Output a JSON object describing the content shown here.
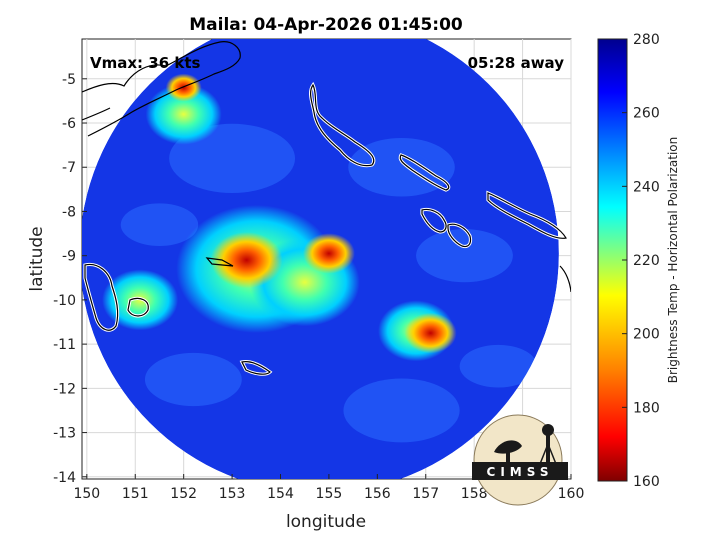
{
  "chart_data": {
    "type": "heatmap",
    "title": "Maila: 04-Apr-2026 01:45:00",
    "xlabel": "longitude",
    "ylabel": "latitude",
    "xlim": [
      149.9,
      160
    ],
    "ylim": [
      -14.05,
      -4.1
    ],
    "x_ticks": [
      150,
      151,
      152,
      153,
      154,
      155,
      156,
      157,
      158,
      159,
      160
    ],
    "y_ticks": [
      -5,
      -6,
      -7,
      -8,
      -9,
      -10,
      -11,
      -12,
      -13,
      -14
    ],
    "grid": true,
    "annotations": {
      "vmax": "Vmax: 36 kts",
      "away": "05:28 away"
    },
    "colorbar": {
      "label": "Brightness Temp - Horizontal Polarization",
      "min": 160,
      "max": 280,
      "ticks": [
        280,
        260,
        240,
        220,
        200,
        180,
        160
      ],
      "colormap": [
        "#7f0000",
        "#ff0000",
        "#ff8000",
        "#ffff00",
        "#80ff80",
        "#00ffff",
        "#0080ff",
        "#0000ff",
        "#00008f"
      ]
    },
    "swath": {
      "center_lon": 154.8,
      "center_lat": -8.95,
      "radius_deg": 4.95
    },
    "cold_cores": [
      {
        "lon": 153.3,
        "lat": -9.1,
        "temp": 188
      },
      {
        "lon": 155.0,
        "lat": -8.95,
        "temp": 172
      },
      {
        "lon": 157.1,
        "lat": -10.75,
        "temp": 198
      },
      {
        "lon": 152.0,
        "lat": -5.2,
        "temp": 170
      }
    ],
    "moderate_regions": [
      {
        "lon": 153.5,
        "lat": -9.3,
        "temp": 228
      },
      {
        "lon": 154.5,
        "lat": -9.6,
        "temp": 238
      },
      {
        "lon": 151.1,
        "lat": -10.0,
        "temp": 232
      },
      {
        "lon": 156.8,
        "lat": -10.7,
        "temp": 235
      },
      {
        "lon": 152.0,
        "lat": -5.8,
        "temp": 238
      }
    ],
    "logo": "CIMSS"
  }
}
